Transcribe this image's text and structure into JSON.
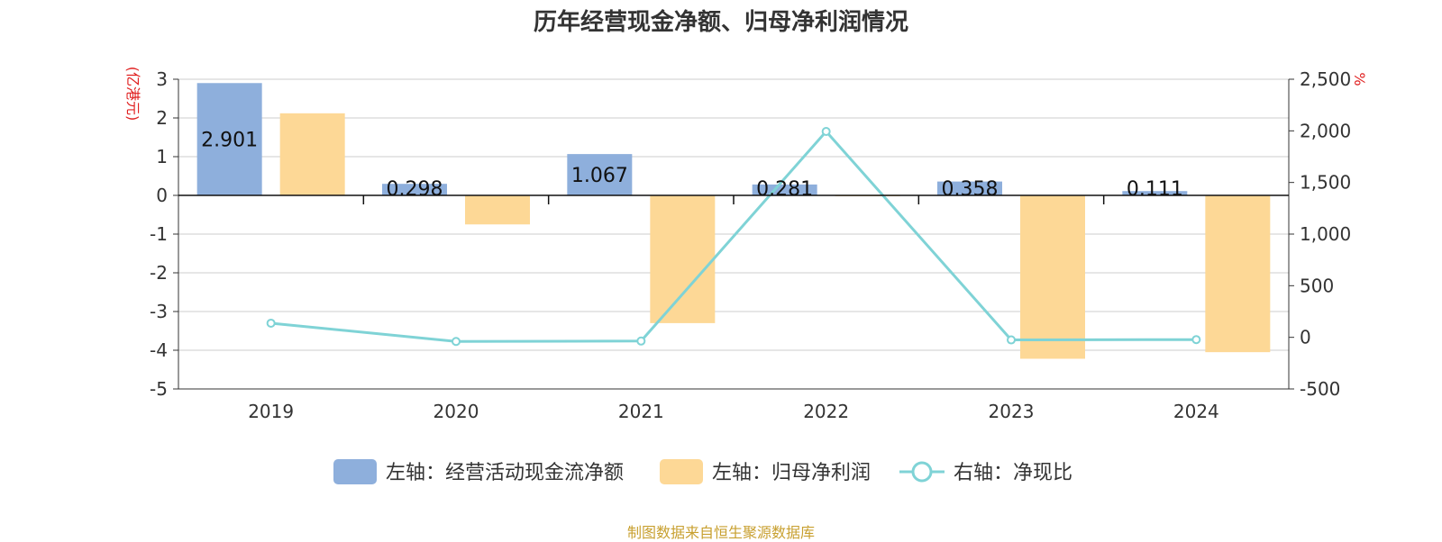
{
  "chart_data": {
    "type": "bar",
    "title": "历年经营现金净额、归母净利润情况",
    "left_axis_unit": "(亿港元)",
    "right_axis_unit": "%",
    "categories": [
      "2019",
      "2020",
      "2021",
      "2022",
      "2023",
      "2024"
    ],
    "left_ylim": [
      -5,
      3
    ],
    "left_ticks": [
      3,
      2,
      1,
      0,
      -1,
      -2,
      -3,
      -4,
      -5
    ],
    "left_tick_labels": [
      "3",
      "2",
      "1",
      "0",
      "-1",
      "-2",
      "-3",
      "-4",
      "-5"
    ],
    "right_ylim": [
      -500,
      2500
    ],
    "right_ticks": [
      2500,
      2000,
      1500,
      1000,
      500,
      0,
      -500
    ],
    "right_tick_labels": [
      "2,500",
      "2,000",
      "1,500",
      "1,000",
      "500",
      "0",
      "-500"
    ],
    "grid": true,
    "legend_position": "bottom",
    "series": [
      {
        "name": "左轴：经营活动现金流净额",
        "type": "bar",
        "axis": "left",
        "color": "#8eafdc",
        "values": [
          2.901,
          0.298,
          1.067,
          0.281,
          0.358,
          0.111
        ],
        "labels": [
          "2.901",
          "0.298",
          "1.067",
          "0.281",
          "0.358",
          "0.111"
        ]
      },
      {
        "name": "左轴：归母净利润",
        "type": "bar",
        "axis": "left",
        "color": "#fdd896",
        "values": [
          2.12,
          -0.75,
          -3.3,
          -0.02,
          -4.22,
          -4.05
        ]
      },
      {
        "name": "右轴：净现比",
        "type": "line",
        "axis": "right",
        "color": "#7fd3d6",
        "values": [
          137,
          -40,
          -36,
          1994,
          -25,
          -22
        ]
      }
    ]
  },
  "source_note": "制图数据来自恒生聚源数据库"
}
